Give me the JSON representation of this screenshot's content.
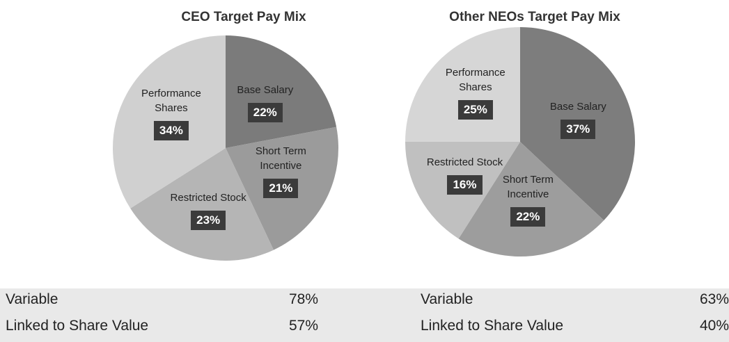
{
  "chart_data": [
    {
      "type": "pie",
      "title": "CEO Target Pay Mix",
      "categories": [
        "Base Salary",
        "Short Term Incentive",
        "Restricted Stock",
        "Performance Shares"
      ],
      "values": [
        22,
        21,
        23,
        34
      ],
      "value_labels": [
        "22%",
        "21%",
        "23%",
        "34%"
      ],
      "colors": [
        "#7b7b7b",
        "#9b9b9b",
        "#b5b5b5",
        "#d0d0d0"
      ]
    },
    {
      "type": "pie",
      "title": "Other NEOs Target Pay Mix",
      "categories": [
        "Base Salary",
        "Short Term Incentive",
        "Restricted Stock",
        "Performance Shares"
      ],
      "values": [
        37,
        22,
        16,
        25
      ],
      "value_labels": [
        "37%",
        "22%",
        "16%",
        "25%"
      ],
      "colors": [
        "#7d7d7d",
        "#9d9d9d",
        "#c0c0c0",
        "#d6d6d6"
      ]
    }
  ],
  "tables": [
    {
      "rows": [
        [
          "Variable",
          "78%"
        ],
        [
          "Linked to Share Value",
          "57%"
        ]
      ]
    },
    {
      "rows": [
        [
          "Variable",
          "63%"
        ],
        [
          "Linked to Share Value",
          "40%"
        ]
      ]
    }
  ]
}
